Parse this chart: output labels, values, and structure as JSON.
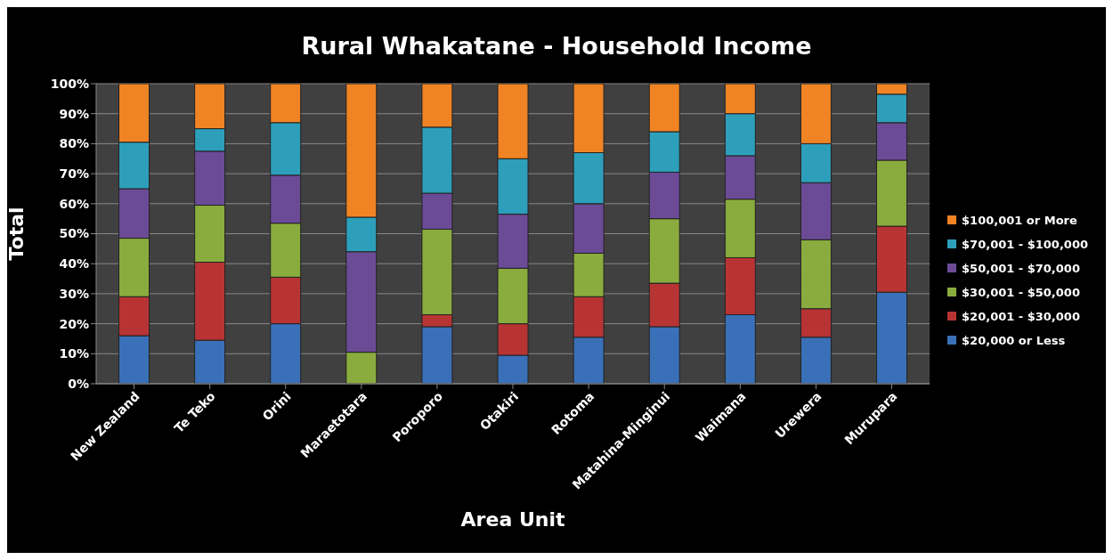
{
  "chart_data": {
    "type": "bar",
    "stacked": true,
    "title": "Rural Whakatane - Household Income",
    "xlabel": "Area Unit",
    "ylabel": "Total",
    "categories": [
      "New Zealand",
      "Te Teko",
      "Orini",
      "Maraetotara",
      "Poroporo",
      "Otakiri",
      "Rotoma",
      "Matahina-Minginui",
      "Waimana",
      "Urewera",
      "Murupara"
    ],
    "series": [
      {
        "name": "$20,000 or Less",
        "color": "#3a70b8",
        "values": [
          16,
          14.5,
          20,
          0,
          19,
          9.5,
          15.5,
          19,
          23,
          15.5,
          30.5
        ]
      },
      {
        "name": "$20,001 - $30,000",
        "color": "#b83434",
        "values": [
          13,
          26,
          15.5,
          0,
          4,
          10.5,
          13.5,
          14.5,
          19,
          9.5,
          22
        ]
      },
      {
        "name": "$30,001 - $50,000",
        "color": "#8aac3e",
        "values": [
          19.5,
          19,
          18,
          10.5,
          28.5,
          18.5,
          14.5,
          21.5,
          19.5,
          23,
          22
        ]
      },
      {
        "name": "$50,001 - $70,000",
        "color": "#6b4b96",
        "values": [
          16.5,
          18,
          16,
          33.5,
          12,
          18,
          16.5,
          15.5,
          14.5,
          19,
          12.5
        ]
      },
      {
        "name": "$70,001 - $100,000",
        "color": "#2e9fba",
        "values": [
          15.5,
          7.5,
          17.5,
          11.5,
          22,
          18.5,
          17,
          13.5,
          14,
          13,
          9.5
        ]
      },
      {
        "name": "$100,001 or More",
        "color": "#f08424",
        "values": [
          19.5,
          15,
          13,
          44.5,
          14.5,
          25,
          23,
          16,
          10,
          20,
          3.5
        ]
      }
    ],
    "ylim": [
      0,
      100
    ],
    "yticks": [
      {
        "value": 0,
        "label": "0%"
      },
      {
        "value": 10,
        "label": "10%"
      },
      {
        "value": 20,
        "label": "20%"
      },
      {
        "value": 30,
        "label": "30%"
      },
      {
        "value": 40,
        "label": "40%"
      },
      {
        "value": 50,
        "label": "50%"
      },
      {
        "value": 60,
        "label": "60%"
      },
      {
        "value": 70,
        "label": "70%"
      },
      {
        "value": 80,
        "label": "80%"
      },
      {
        "value": 90,
        "label": "90%"
      },
      {
        "value": 100,
        "label": "100%"
      }
    ],
    "grid": "y",
    "legend": "right"
  }
}
